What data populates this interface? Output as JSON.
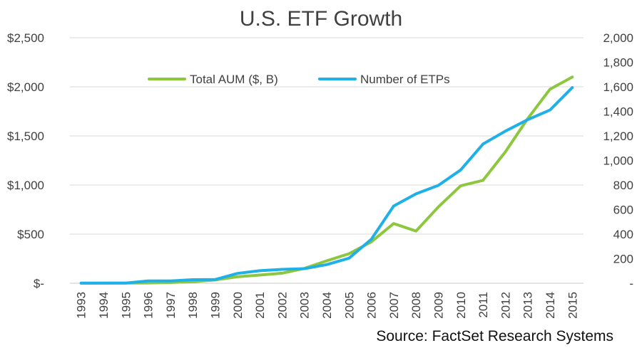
{
  "chart_data": {
    "type": "line",
    "title": "U.S. ETF Growth",
    "source": "Source: FactSet Research Systems",
    "categories": [
      "1993",
      "1994",
      "1995",
      "1996",
      "1997",
      "1998",
      "1999",
      "2000",
      "2001",
      "2002",
      "2003",
      "2004",
      "2005",
      "2006",
      "2007",
      "2008",
      "2009",
      "2010",
      "2011",
      "2012",
      "2013",
      "2014",
      "2015"
    ],
    "y_left": {
      "lim": [
        0,
        2500
      ],
      "ticks": [
        0,
        500,
        1000,
        1500,
        2000,
        2500
      ],
      "tick_labels": [
        "$-",
        "$500",
        "$1,000",
        "$1,500",
        "$2,000",
        "$2,500"
      ]
    },
    "y_right": {
      "lim": [
        0,
        2000
      ],
      "ticks": [
        0,
        200,
        400,
        600,
        800,
        1000,
        1200,
        1400,
        1600,
        1800,
        2000
      ],
      "tick_labels": [
        "-",
        "200",
        "400",
        "600",
        "800",
        "1,000",
        "1,200",
        "1,400",
        "1,600",
        "1,800",
        "2,000"
      ]
    },
    "grid": true,
    "legend_position": "top-center",
    "series": [
      {
        "name": "Total AUM ($, B)",
        "axis": "left",
        "color": "#8DC63F",
        "values": [
          0,
          1,
          2,
          3,
          7,
          15,
          33,
          66,
          83,
          102,
          151,
          228,
          301,
          422,
          608,
          531,
          777,
          992,
          1048,
          1337,
          1675,
          1975,
          2100
        ]
      },
      {
        "name": "Number of ETPs",
        "axis": "right",
        "color": "#1EB0E6",
        "values": [
          1,
          2,
          2,
          19,
          19,
          29,
          30,
          80,
          102,
          113,
          119,
          152,
          204,
          359,
          629,
          728,
          797,
          923,
          1134,
          1239,
          1332,
          1411,
          1594
        ]
      }
    ]
  }
}
